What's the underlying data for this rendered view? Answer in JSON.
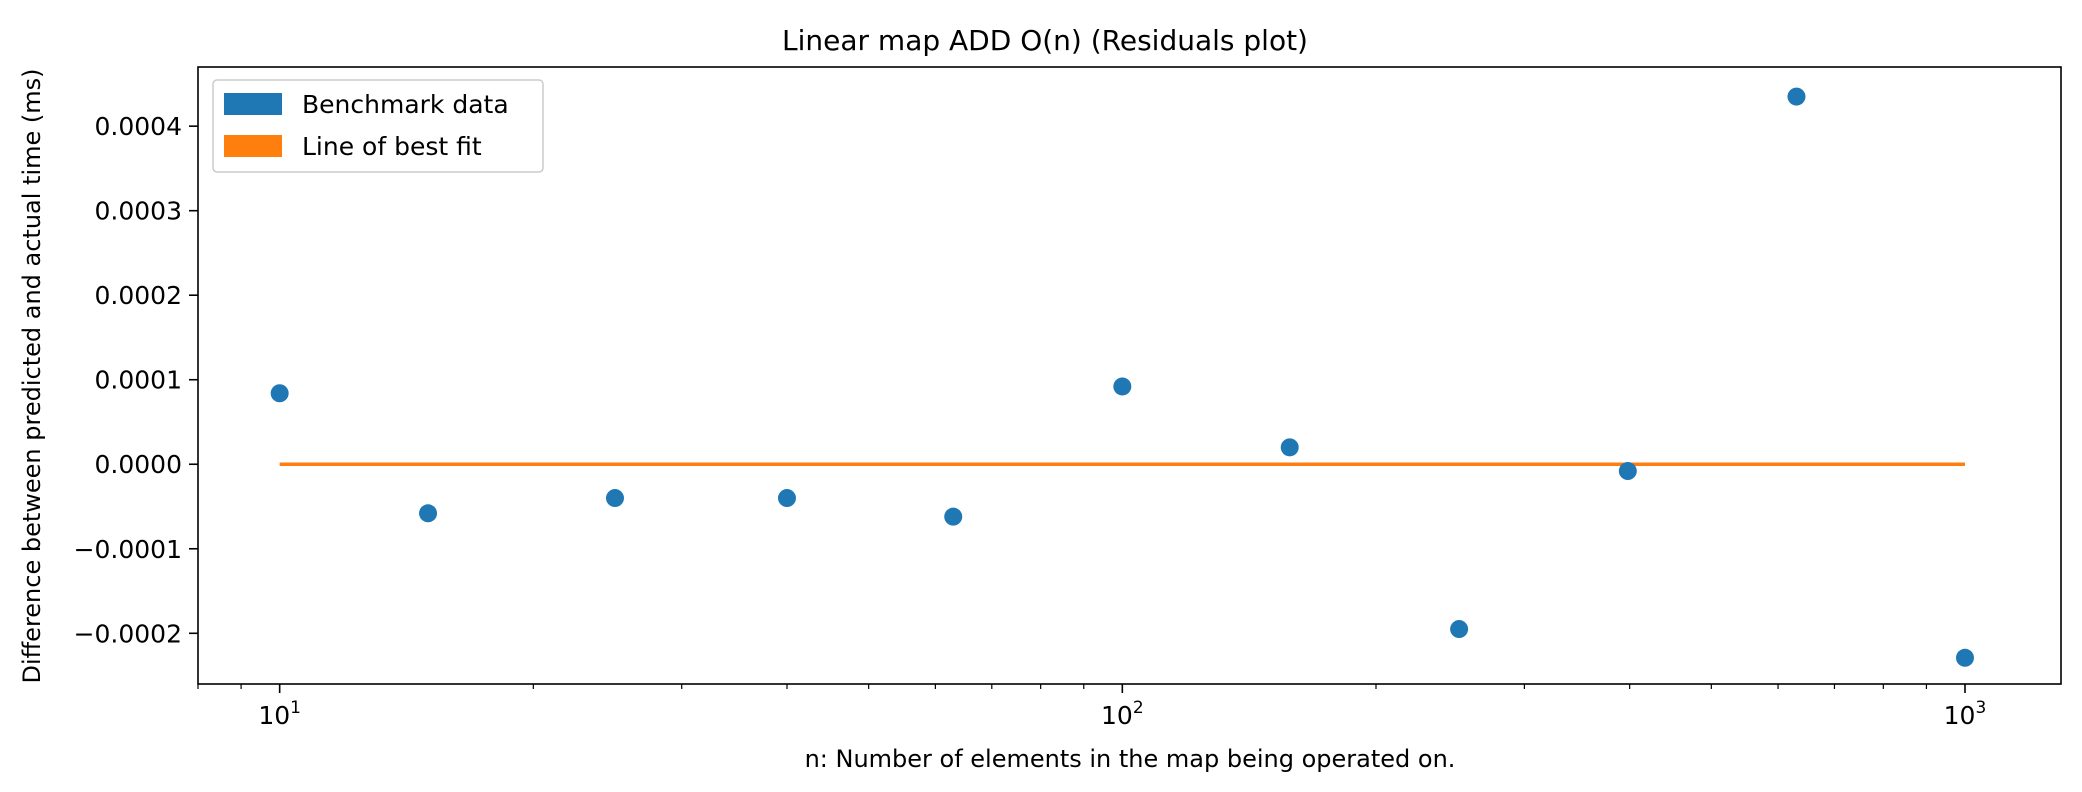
{
  "chart_data": {
    "type": "scatter",
    "title": "Linear map ADD O(n)  (Residuals plot)",
    "xlabel": "n: Number of elements in the map being operated on.",
    "ylabel": "Difference between predicted and actual time (ms)",
    "xscale": "log",
    "xlim": [
      8.0,
      1300
    ],
    "ylim": [
      -0.00026,
      0.00047
    ],
    "grid": false,
    "legend_position": "top-left",
    "x_ticks": [
      {
        "value": 10,
        "base": "10",
        "exp": "1"
      },
      {
        "value": 100,
        "base": "10",
        "exp": "2"
      },
      {
        "value": 1000,
        "base": "10",
        "exp": "3"
      }
    ],
    "y_ticks": [
      {
        "value": 0.0004,
        "label": "0.0004"
      },
      {
        "value": 0.0003,
        "label": "0.0003"
      },
      {
        "value": 0.0002,
        "label": "0.0002"
      },
      {
        "value": 0.0001,
        "label": "0.0001"
      },
      {
        "value": 0.0,
        "label": "0.0000"
      },
      {
        "value": -0.0001,
        "label": "−0.0001"
      },
      {
        "value": -0.0002,
        "label": "−0.0002"
      }
    ],
    "series": [
      {
        "name": "Benchmark data",
        "kind": "scatter",
        "color": "#1f77b4",
        "x": [
          10,
          15,
          25,
          40,
          63,
          100,
          158,
          251,
          398,
          631,
          1000
        ],
        "y": [
          8.4e-05,
          -5.8e-05,
          -4e-05,
          -4e-05,
          -6.2e-05,
          9.2e-05,
          2e-05,
          -0.000195,
          -8e-06,
          0.000435,
          -0.000229
        ]
      },
      {
        "name": "Line of best fit",
        "kind": "line",
        "color": "#ff7f0e",
        "x": [
          10,
          1000
        ],
        "y": [
          0.0,
          0.0
        ]
      }
    ]
  }
}
